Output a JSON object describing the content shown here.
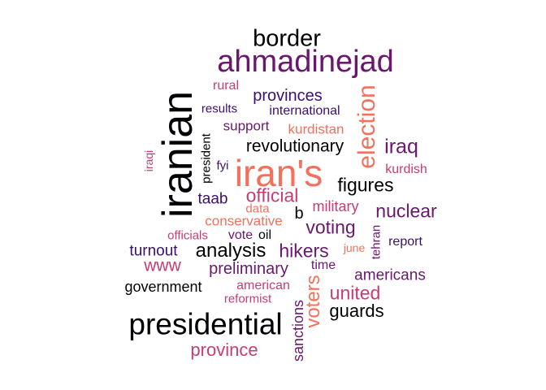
{
  "words": [
    {
      "text": "border",
      "color": "#000004"
    },
    {
      "text": "ahmadinejad",
      "color": "#6a176e"
    },
    {
      "text": "rural",
      "color": "#c73d73"
    },
    {
      "text": "results",
      "color": "#3b0f6f"
    },
    {
      "text": "provinces",
      "color": "#3b0f6f"
    },
    {
      "text": "international",
      "color": "#3b0f6f"
    },
    {
      "text": "election",
      "color": "#f1715c"
    },
    {
      "text": "iranian",
      "color": "#000004"
    },
    {
      "text": "support",
      "color": "#6a176e"
    },
    {
      "text": "kurdistan",
      "color": "#f1715c"
    },
    {
      "text": "president",
      "color": "#000004"
    },
    {
      "text": "revolutionary",
      "color": "#000004"
    },
    {
      "text": "iraq",
      "color": "#6a176e"
    },
    {
      "text": "iraqi",
      "color": "#c73d73"
    },
    {
      "text": "fyi",
      "color": "#3b0f6f"
    },
    {
      "text": "iran's",
      "color": "#f1715c"
    },
    {
      "text": "kurdish",
      "color": "#c73d73"
    },
    {
      "text": "figures",
      "color": "#000004"
    },
    {
      "text": "taab",
      "color": "#3b0f6f"
    },
    {
      "text": "official",
      "color": "#c73d73"
    },
    {
      "text": "military",
      "color": "#c73d73"
    },
    {
      "text": "nuclear",
      "color": "#6a176e"
    },
    {
      "text": "data",
      "color": "#f1715c"
    },
    {
      "text": "b",
      "color": "#000004"
    },
    {
      "text": "conservative",
      "color": "#f1715c"
    },
    {
      "text": "voting",
      "color": "#6a176e"
    },
    {
      "text": "officials",
      "color": "#c73d73"
    },
    {
      "text": "vote",
      "color": "#6a176e"
    },
    {
      "text": "oil",
      "color": "#000004"
    },
    {
      "text": "june",
      "color": "#f1715c"
    },
    {
      "text": "tehran",
      "color": "#6a176e"
    },
    {
      "text": "report",
      "color": "#3b0f6f"
    },
    {
      "text": "turnout",
      "color": "#3b0f6f"
    },
    {
      "text": "analysis",
      "color": "#000004"
    },
    {
      "text": "hikers",
      "color": "#6a176e"
    },
    {
      "text": "www",
      "color": "#c73d73"
    },
    {
      "text": "preliminary",
      "color": "#6a176e"
    },
    {
      "text": "time",
      "color": "#6a176e"
    },
    {
      "text": "americans",
      "color": "#6a176e"
    },
    {
      "text": "government",
      "color": "#000004"
    },
    {
      "text": "american",
      "color": "#c73d73"
    },
    {
      "text": "voters",
      "color": "#f1715c"
    },
    {
      "text": "united",
      "color": "#c73d73"
    },
    {
      "text": "reformist",
      "color": "#c73d73"
    },
    {
      "text": "guards",
      "color": "#000004"
    },
    {
      "text": "presidential",
      "color": "#000004"
    },
    {
      "text": "sanctions",
      "color": "#6a176e"
    },
    {
      "text": "province",
      "color": "#c73d73"
    }
  ]
}
